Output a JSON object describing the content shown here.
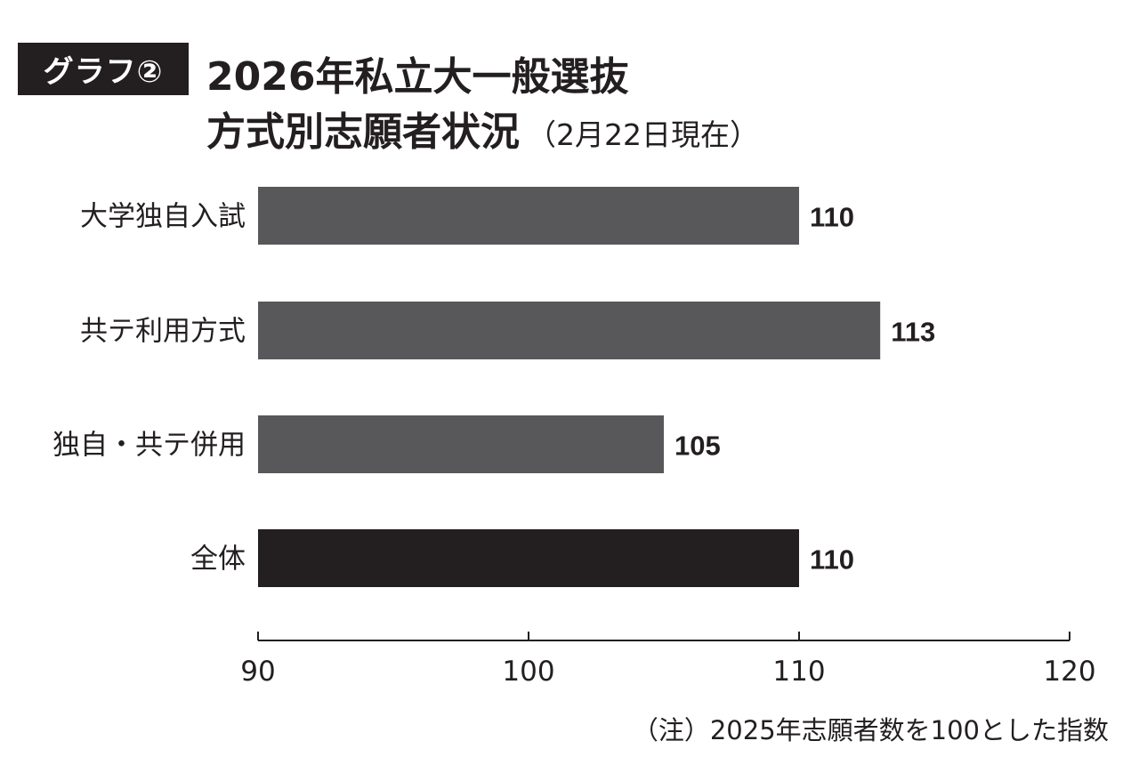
{
  "chart_data": {
    "type": "bar",
    "orientation": "horizontal",
    "badge": "グラフ②",
    "title": "2026年私立大一般選抜",
    "title_line2": "方式別志願者状況",
    "subtitle": "（2月22日現在）",
    "categories": [
      "大学独自入試",
      "共テ利用方式",
      "独自・共テ併用",
      "全体"
    ],
    "values": [
      110,
      113,
      105,
      110
    ],
    "value_labels": [
      "110",
      "113",
      "105",
      "110"
    ],
    "bar_colors": [
      "#58575a",
      "#58575a",
      "#58575a",
      "#231f20"
    ],
    "xlim": [
      90,
      120
    ],
    "xticks": [
      90,
      100,
      110,
      120
    ],
    "xtick_labels": [
      "90",
      "100",
      "110",
      "120"
    ],
    "grid": false,
    "note": "（注）2025年志願者数を100とした指数"
  }
}
